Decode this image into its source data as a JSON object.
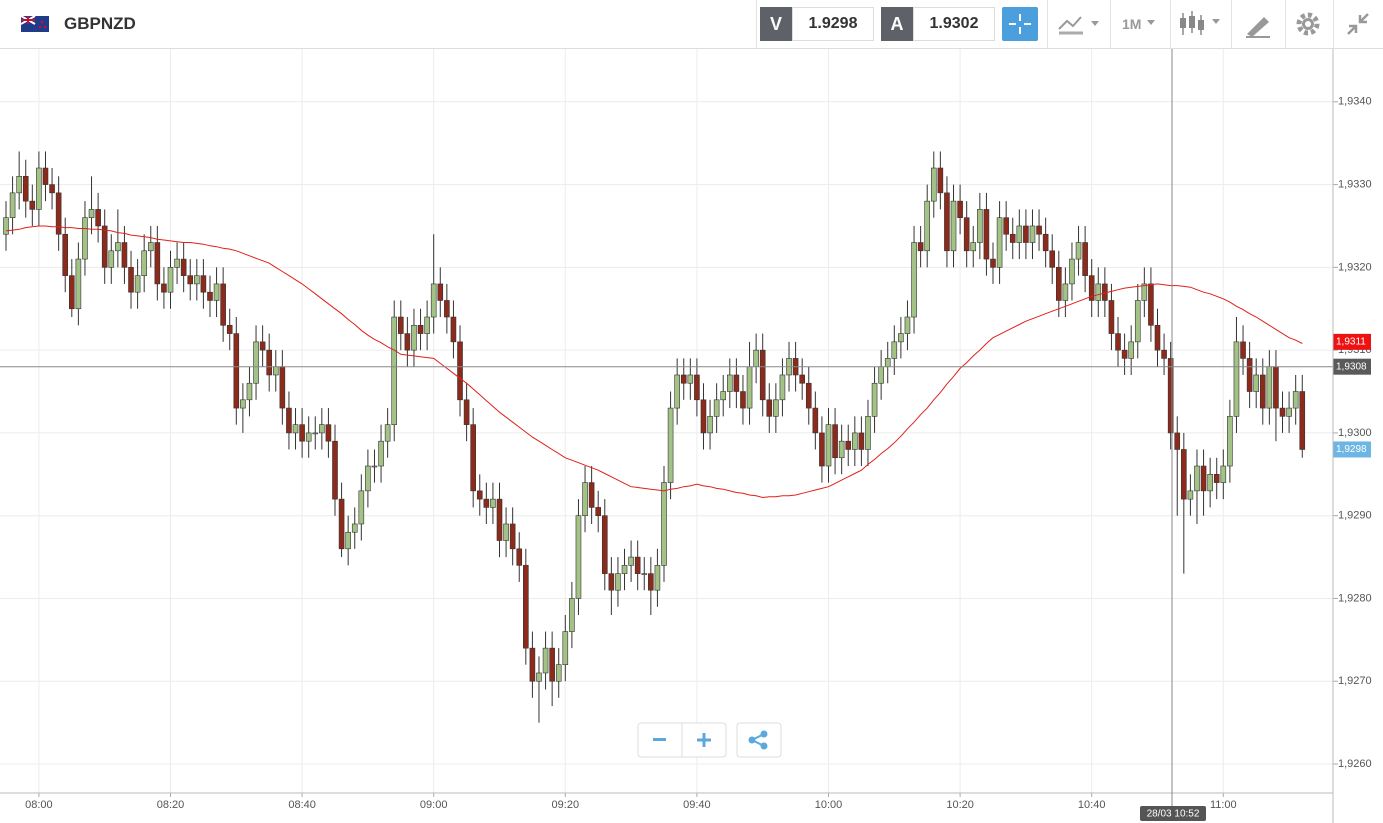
{
  "header": {
    "symbol": "GBPNZD",
    "bid_letter": "V",
    "bid": 1.9298,
    "ask_letter": "A",
    "ask": 1.9302,
    "timeframe": "1M"
  },
  "chart_data": {
    "type": "candlestick",
    "categories": [
      null,
      null,
      null,
      null,
      null,
      "08:00",
      null,
      null,
      null,
      null,
      null,
      null,
      null,
      null,
      null,
      null,
      null,
      null,
      null,
      null,
      null,
      null,
      null,
      null,
      null,
      "08:20",
      null,
      null,
      null,
      null,
      null,
      null,
      null,
      null,
      null,
      null,
      null,
      null,
      null,
      null,
      null,
      null,
      null,
      null,
      null,
      "08:40",
      null,
      null,
      null,
      null,
      null,
      null,
      null,
      null,
      null,
      null,
      null,
      null,
      null,
      null,
      null,
      null,
      null,
      null,
      null,
      "09:00",
      null,
      null,
      null,
      null,
      null,
      null,
      null,
      null,
      null,
      null,
      null,
      null,
      null,
      null,
      null,
      null,
      null,
      null,
      null,
      "09:20",
      null,
      null,
      null,
      null,
      null,
      null,
      null,
      null,
      null,
      null,
      null,
      null,
      null,
      null,
      null,
      null,
      null,
      null,
      null,
      "09:40",
      null,
      null,
      null,
      null,
      null,
      null,
      null,
      null,
      null,
      null,
      null,
      null,
      null,
      null,
      null,
      null,
      null,
      null,
      null,
      "10:00",
      null,
      null,
      null,
      null,
      null,
      null,
      null,
      null,
      null,
      null,
      null,
      null,
      null,
      null,
      null,
      null,
      null,
      null,
      null,
      "10:20",
      null,
      null,
      null,
      null,
      null,
      null,
      null,
      null,
      null,
      null,
      null,
      null,
      null,
      null,
      null,
      null,
      null,
      null,
      null,
      "10:40",
      null,
      null,
      null,
      null,
      null,
      null,
      null,
      null,
      null,
      null,
      null,
      null,
      null,
      null,
      null,
      null,
      null,
      null,
      null,
      "11:00",
      null,
      null,
      null,
      null,
      null,
      null,
      null,
      null,
      null,
      null,
      null,
      null
    ],
    "open": [
      1.9324,
      1.9326,
      1.9329,
      1.9331,
      1.9328,
      1.9327,
      1.9332,
      1.933,
      1.9329,
      1.9324,
      1.9319,
      1.9315,
      1.9321,
      1.9326,
      1.9327,
      1.9325,
      1.932,
      1.9322,
      1.9323,
      1.932,
      1.9317,
      1.9319,
      1.9322,
      1.9323,
      1.9318,
      1.9317,
      1.932,
      1.9321,
      1.9319,
      1.9318,
      1.9319,
      1.9317,
      1.9316,
      1.9318,
      1.9313,
      1.9312,
      1.9303,
      1.9304,
      1.9306,
      1.9311,
      1.931,
      1.9307,
      1.9308,
      1.9303,
      1.93,
      1.9301,
      1.9299,
      1.93,
      1.93,
      1.9301,
      1.9299,
      1.9292,
      1.9286,
      1.9288,
      1.9289,
      1.9293,
      1.9296,
      1.9296,
      1.9299,
      1.9301,
      1.9314,
      1.9312,
      1.931,
      1.9313,
      1.9312,
      1.9314,
      1.9318,
      1.9316,
      1.9314,
      1.9311,
      1.9304,
      1.9301,
      1.9293,
      1.9292,
      1.9291,
      1.9292,
      1.9287,
      1.9289,
      1.9286,
      1.9284,
      1.9274,
      1.927,
      1.9271,
      1.9274,
      1.927,
      1.9272,
      1.9276,
      1.928,
      1.929,
      1.9294,
      1.9291,
      1.929,
      1.9283,
      1.9281,
      1.9283,
      1.9284,
      1.9285,
      1.9283,
      1.9283,
      1.9281,
      1.9284,
      1.9294,
      1.9303,
      1.9307,
      1.9306,
      1.9307,
      1.9304,
      1.93,
      1.9302,
      1.9304,
      1.9305,
      1.9307,
      1.9305,
      1.9303,
      1.9308,
      1.931,
      1.9304,
      1.9302,
      1.9304,
      1.9307,
      1.9309,
      1.9307,
      1.9306,
      1.9303,
      1.93,
      1.9296,
      1.9301,
      1.9297,
      1.9299,
      1.9298,
      1.93,
      1.9298,
      1.9302,
      1.9306,
      1.9308,
      1.9309,
      1.9311,
      1.9312,
      1.9314,
      1.9323,
      1.9322,
      1.9328,
      1.9332,
      1.9329,
      1.9322,
      1.9328,
      1.9326,
      1.9322,
      1.9323,
      1.9327,
      1.9321,
      1.932,
      1.9326,
      1.9324,
      1.9323,
      1.9325,
      1.9323,
      1.9325,
      1.9324,
      1.9322,
      1.932,
      1.9316,
      1.9318,
      1.9321,
      1.9323,
      1.9319,
      1.9316,
      1.9318,
      1.9316,
      1.9312,
      1.931,
      1.9309,
      1.9311,
      1.9316,
      1.9318,
      1.9313,
      1.931,
      1.9309,
      1.93,
      1.9298,
      1.9292,
      1.9293,
      1.9296,
      1.9293,
      1.9295,
      1.9294,
      1.9296,
      1.9302,
      1.9311,
      1.9309,
      1.9305,
      1.9307,
      1.9303,
      1.9308,
      1.9303,
      1.9302,
      1.9303,
      1.9305
    ],
    "high": [
      1.9328,
      1.9331,
      1.9334,
      1.9333,
      1.933,
      1.9334,
      1.9334,
      1.9332,
      1.9331,
      1.9326,
      1.9321,
      1.9323,
      1.9328,
      1.9331,
      1.9329,
      1.9327,
      1.9324,
      1.9327,
      1.9325,
      1.9322,
      1.9321,
      1.9324,
      1.9325,
      1.9325,
      1.932,
      1.9322,
      1.9323,
      1.9323,
      1.9321,
      1.9321,
      1.9321,
      1.9319,
      1.932,
      1.932,
      1.9315,
      1.9314,
      1.9306,
      1.9308,
      1.9313,
      1.9313,
      1.9312,
      1.931,
      1.931,
      1.9305,
      1.9303,
      1.9303,
      1.9302,
      1.9302,
      1.9303,
      1.9303,
      1.9301,
      1.9294,
      1.929,
      1.9291,
      1.9295,
      1.9298,
      1.9298,
      1.9301,
      1.9303,
      1.9316,
      1.9316,
      1.9314,
      1.9315,
      1.9315,
      1.9316,
      1.9324,
      1.932,
      1.9318,
      1.9316,
      1.9313,
      1.9306,
      1.9303,
      1.9295,
      1.9294,
      1.9294,
      1.9294,
      1.9291,
      1.9291,
      1.9288,
      1.9286,
      1.9276,
      1.9273,
      1.9276,
      1.9276,
      1.9274,
      1.9278,
      1.9282,
      1.9292,
      1.9296,
      1.9296,
      1.9293,
      1.9292,
      1.9285,
      1.9285,
      1.9286,
      1.9287,
      1.9287,
      1.9285,
      1.9285,
      1.9286,
      1.9296,
      1.9305,
      1.9309,
      1.9309,
      1.9309,
      1.9309,
      1.9306,
      1.9304,
      1.9306,
      1.9307,
      1.9309,
      1.9309,
      1.9307,
      1.9311,
      1.9312,
      1.9312,
      1.9306,
      1.9306,
      1.9309,
      1.9311,
      1.9311,
      1.9309,
      1.9308,
      1.9305,
      1.9302,
      1.9303,
      1.9303,
      1.9301,
      1.9301,
      1.9302,
      1.9302,
      1.9304,
      1.9308,
      1.931,
      1.9311,
      1.9313,
      1.9314,
      1.9316,
      1.9325,
      1.9325,
      1.933,
      1.9334,
      1.9334,
      1.9331,
      1.933,
      1.933,
      1.9328,
      1.9325,
      1.9329,
      1.9329,
      1.9323,
      1.9328,
      1.9328,
      1.9326,
      1.9327,
      1.9327,
      1.9327,
      1.9327,
      1.9326,
      1.9324,
      1.9322,
      1.932,
      1.9323,
      1.9325,
      1.9325,
      1.9321,
      1.932,
      1.932,
      1.9318,
      1.9314,
      1.9312,
      1.9313,
      1.9318,
      1.932,
      1.932,
      1.9315,
      1.9312,
      1.9311,
      1.9302,
      1.93,
      1.9295,
      1.9298,
      1.9298,
      1.9297,
      1.9297,
      1.9298,
      1.9304,
      1.9314,
      1.9313,
      1.9311,
      1.9309,
      1.9309,
      1.931,
      1.931,
      1.9305,
      1.9305,
      1.9307,
      1.9307
    ],
    "low": [
      1.9322,
      1.9324,
      1.9327,
      1.9326,
      1.9325,
      1.9325,
      1.9328,
      1.9327,
      1.9322,
      1.9317,
      1.9314,
      1.9313,
      1.9319,
      1.9324,
      1.9323,
      1.9318,
      1.9318,
      1.932,
      1.9318,
      1.9315,
      1.9315,
      1.9317,
      1.932,
      1.9316,
      1.9315,
      1.9315,
      1.9318,
      1.9317,
      1.9316,
      1.9316,
      1.9315,
      1.9314,
      1.9314,
      1.9311,
      1.931,
      1.9301,
      1.93,
      1.9302,
      1.9304,
      1.9308,
      1.9305,
      1.9305,
      1.9301,
      1.9298,
      1.9298,
      1.9297,
      1.9297,
      1.9298,
      1.9298,
      1.9297,
      1.929,
      1.9285,
      1.9284,
      1.9286,
      1.9287,
      1.9291,
      1.9294,
      1.9294,
      1.9297,
      1.9299,
      1.931,
      1.9308,
      1.9308,
      1.931,
      1.931,
      1.9312,
      1.9314,
      1.9312,
      1.9309,
      1.9302,
      1.9299,
      1.9291,
      1.929,
      1.9289,
      1.9289,
      1.9285,
      1.9285,
      1.9284,
      1.9282,
      1.9272,
      1.9268,
      1.9265,
      1.9269,
      1.9267,
      1.9268,
      1.927,
      1.9274,
      1.9278,
      1.9288,
      1.9289,
      1.9288,
      1.9281,
      1.9278,
      1.9279,
      1.9281,
      1.9282,
      1.9281,
      1.9281,
      1.9278,
      1.9279,
      1.9282,
      1.9292,
      1.9301,
      1.9304,
      1.9304,
      1.9302,
      1.9298,
      1.9298,
      1.93,
      1.9302,
      1.9303,
      1.9303,
      1.9301,
      1.9301,
      1.9306,
      1.9302,
      1.93,
      1.93,
      1.9302,
      1.9305,
      1.9305,
      1.9304,
      1.9301,
      1.9298,
      1.9294,
      1.9294,
      1.9295,
      1.9295,
      1.9296,
      1.9296,
      1.9296,
      1.9296,
      1.93,
      1.9304,
      1.9306,
      1.9307,
      1.9309,
      1.931,
      1.9312,
      1.932,
      1.932,
      1.9326,
      1.9327,
      1.932,
      1.932,
      1.9324,
      1.932,
      1.932,
      1.9321,
      1.9319,
      1.9318,
      1.9318,
      1.9322,
      1.9321,
      1.9321,
      1.9321,
      1.9321,
      1.9322,
      1.932,
      1.9318,
      1.9314,
      1.9314,
      1.9316,
      1.9319,
      1.9317,
      1.9314,
      1.9314,
      1.9314,
      1.931,
      1.9308,
      1.9307,
      1.9307,
      1.9309,
      1.9314,
      1.9311,
      1.9308,
      1.9307,
      1.9298,
      1.929,
      1.9283,
      1.929,
      1.9289,
      1.929,
      1.9291,
      1.9292,
      1.9292,
      1.9294,
      1.93,
      1.9307,
      1.9303,
      1.9303,
      1.9301,
      1.9301,
      1.9299,
      1.93,
      1.93,
      1.9301,
      1.9297
    ],
    "close": [
      1.9326,
      1.9329,
      1.9331,
      1.9328,
      1.9327,
      1.9332,
      1.933,
      1.9329,
      1.9324,
      1.9319,
      1.9315,
      1.9321,
      1.9326,
      1.9327,
      1.9325,
      1.932,
      1.9322,
      1.9323,
      1.932,
      1.9317,
      1.9319,
      1.9322,
      1.9323,
      1.9318,
      1.9317,
      1.932,
      1.9321,
      1.9319,
      1.9318,
      1.9319,
      1.9317,
      1.9316,
      1.9318,
      1.9313,
      1.9312,
      1.9303,
      1.9304,
      1.9306,
      1.9311,
      1.931,
      1.9307,
      1.9308,
      1.9303,
      1.93,
      1.9301,
      1.9299,
      1.93,
      1.93,
      1.9301,
      1.9299,
      1.9292,
      1.9286,
      1.9288,
      1.9289,
      1.9293,
      1.9296,
      1.9296,
      1.9299,
      1.9301,
      1.9314,
      1.9312,
      1.931,
      1.9313,
      1.9312,
      1.9314,
      1.9318,
      1.9316,
      1.9314,
      1.9311,
      1.9304,
      1.9301,
      1.9293,
      1.9292,
      1.9291,
      1.9292,
      1.9287,
      1.9289,
      1.9286,
      1.9284,
      1.9274,
      1.927,
      1.9271,
      1.9274,
      1.927,
      1.9272,
      1.9276,
      1.928,
      1.929,
      1.9294,
      1.9291,
      1.929,
      1.9283,
      1.9281,
      1.9283,
      1.9284,
      1.9285,
      1.9283,
      1.9283,
      1.9281,
      1.9284,
      1.9294,
      1.9303,
      1.9307,
      1.9306,
      1.9307,
      1.9304,
      1.93,
      1.9302,
      1.9304,
      1.9305,
      1.9307,
      1.9305,
      1.9303,
      1.9308,
      1.931,
      1.9304,
      1.9302,
      1.9304,
      1.9307,
      1.9309,
      1.9307,
      1.9306,
      1.9303,
      1.93,
      1.9296,
      1.9301,
      1.9297,
      1.9299,
      1.9298,
      1.93,
      1.9298,
      1.9302,
      1.9306,
      1.9308,
      1.9309,
      1.9311,
      1.9312,
      1.9314,
      1.9323,
      1.9322,
      1.9328,
      1.9332,
      1.9329,
      1.9322,
      1.9328,
      1.9326,
      1.9322,
      1.9323,
      1.9327,
      1.9321,
      1.932,
      1.9326,
      1.9324,
      1.9323,
      1.9325,
      1.9323,
      1.9325,
      1.9324,
      1.9322,
      1.932,
      1.9316,
      1.9318,
      1.9321,
      1.9323,
      1.9319,
      1.9316,
      1.9318,
      1.9316,
      1.9312,
      1.931,
      1.9309,
      1.9311,
      1.9316,
      1.9318,
      1.9313,
      1.931,
      1.9309,
      1.93,
      1.9298,
      1.9292,
      1.9293,
      1.9296,
      1.9293,
      1.9295,
      1.9294,
      1.9296,
      1.9302,
      1.9311,
      1.9309,
      1.9305,
      1.9307,
      1.9303,
      1.9308,
      1.9303,
      1.9302,
      1.9303,
      1.9305,
      1.9298
    ],
    "up_color": "#a3c285",
    "down_color": "#8c2a1c",
    "ma": {
      "color": "#e0201b",
      "values": [
        1.93244,
        1.93245,
        1.93246,
        1.93248,
        1.93249,
        1.9325,
        1.9325,
        1.93249,
        1.93249,
        1.93248,
        1.93248,
        1.93247,
        1.93247,
        1.93246,
        1.93246,
        1.93245,
        1.93244,
        1.93242,
        1.93241,
        1.93239,
        1.93238,
        1.93237,
        1.93236,
        1.93234,
        1.93233,
        1.93232,
        1.93231,
        1.9323,
        1.9323,
        1.93229,
        1.93228,
        1.93226,
        1.93225,
        1.93223,
        1.93222,
        1.9322,
        1.93217,
        1.93214,
        1.93211,
        1.93208,
        1.93205,
        1.932,
        1.93195,
        1.9319,
        1.93185,
        1.9318,
        1.93174,
        1.93168,
        1.93162,
        1.93156,
        1.9315,
        1.93144,
        1.93137,
        1.93131,
        1.93124,
        1.93118,
        1.93113,
        1.93109,
        1.93104,
        1.931,
        1.93095,
        1.93094,
        1.93093,
        1.93092,
        1.93091,
        1.9309,
        1.93084,
        1.93078,
        1.93072,
        1.93066,
        1.9306,
        1.93053,
        1.93046,
        1.93039,
        1.93032,
        1.93025,
        1.93019,
        1.93013,
        1.93007,
        1.93001,
        1.92995,
        1.9299,
        1.92985,
        1.9298,
        1.92975,
        1.9297,
        1.92967,
        1.92964,
        1.92961,
        1.92958,
        1.92955,
        1.92951,
        1.92947,
        1.92943,
        1.92939,
        1.92935,
        1.92934,
        1.92933,
        1.92932,
        1.92931,
        1.9293,
        1.92932,
        1.92933,
        1.92935,
        1.92936,
        1.92938,
        1.92936,
        1.92935,
        1.92933,
        1.92932,
        1.9293,
        1.92928,
        1.92927,
        1.92925,
        1.92924,
        1.92922,
        1.92923,
        1.92923,
        1.92924,
        1.92924,
        1.92925,
        1.92927,
        1.92929,
        1.92931,
        1.92933,
        1.92935,
        1.92939,
        1.92943,
        1.92947,
        1.92951,
        1.92955,
        1.92962,
        1.92968,
        1.92975,
        1.92981,
        1.92988,
        1.92996,
        1.93005,
        1.93013,
        1.93022,
        1.9303,
        1.9304,
        1.93049,
        1.93059,
        1.93068,
        1.93078,
        1.93085,
        1.93093,
        1.931,
        1.93108,
        1.93115,
        1.93119,
        1.93123,
        1.93127,
        1.93131,
        1.93135,
        1.93138,
        1.93141,
        1.93144,
        1.93147,
        1.9315,
        1.93153,
        1.93156,
        1.93159,
        1.93162,
        1.93165,
        1.93167,
        1.93169,
        1.93171,
        1.93173,
        1.93175,
        1.93176,
        1.93177,
        1.93178,
        1.93179,
        1.9318,
        1.93179,
        1.93178,
        1.93178,
        1.93177,
        1.93176,
        1.93173,
        1.9317,
        1.93168,
        1.93165,
        1.93162,
        1.93158,
        1.93153,
        1.93149,
        1.93144,
        1.9314,
        1.93135,
        1.9313,
        1.93125,
        1.9312,
        1.93115,
        1.93112,
        1.93108
      ]
    },
    "ylim": [
      1.92565,
      1.93465
    ],
    "yticks": [
      {
        "value": 1.926,
        "label": "1,9260"
      },
      {
        "value": 1.927,
        "label": "1,9270"
      },
      {
        "value": 1.928,
        "label": "1,9280"
      },
      {
        "value": 1.929,
        "label": "1,9290"
      },
      {
        "value": 1.93,
        "label": "1,9300"
      },
      {
        "value": 1.931,
        "label": "1,9310"
      },
      {
        "value": 1.932,
        "label": "1,9320"
      },
      {
        "value": 1.933,
        "label": "1,9330"
      },
      {
        "value": 1.934,
        "label": "1,9340"
      }
    ],
    "grid": true,
    "markers": [
      {
        "value": 1.9308,
        "label": "1,9308",
        "color": "#5a5a5a",
        "line": true
      },
      {
        "value": 1.9311,
        "label": "1,9311",
        "color": "#ee1111",
        "line": false
      },
      {
        "value": 1.9298,
        "label": "1,9298",
        "color": "#6db6e4",
        "line": false
      }
    ],
    "cursor_time": "28/03 10:52"
  }
}
